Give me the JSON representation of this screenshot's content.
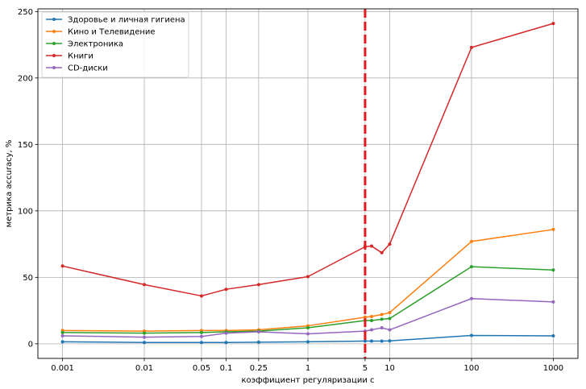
{
  "chart_data": {
    "type": "line",
    "xscale": "log",
    "xlabel": "коэффициент регуляризации c",
    "ylabel": "метрика accuracy, %",
    "xlim": [
      0.0005,
      2000
    ],
    "ylim": [
      -11,
      252
    ],
    "xticks": [
      0.001,
      0.01,
      0.05,
      0.1,
      0.25,
      1,
      5,
      10,
      100,
      1000
    ],
    "xtick_labels": [
      "0.001",
      "0.01",
      "0.05",
      "0.1",
      "0.25",
      "1",
      "5",
      "10",
      "100",
      "1000"
    ],
    "yticks": [
      0,
      50,
      100,
      150,
      200,
      250
    ],
    "ytick_labels": [
      "0",
      "50",
      "100",
      "150",
      "200",
      "250"
    ],
    "grid": true,
    "legend_position": "top-left",
    "vline": {
      "x": 5,
      "color": "#e41a1c",
      "style": "dashed"
    },
    "x": [
      0.001,
      0.01,
      0.05,
      0.1,
      0.25,
      1,
      5,
      6,
      8,
      10,
      100,
      1000
    ],
    "series": [
      {
        "name": "Здоровье и личная гигиена",
        "color": "#1f77b4",
        "values": [
          1.5,
          1.0,
          1.0,
          1.0,
          1.2,
          1.5,
          2.0,
          2.0,
          2.0,
          2.2,
          6.3,
          6.0
        ]
      },
      {
        "name": "Кино и Телевидение",
        "color": "#ff7f0e",
        "values": [
          10.0,
          9.5,
          10.0,
          10.0,
          10.5,
          13.5,
          20.0,
          20.5,
          22.0,
          23.5,
          77.0,
          86.0
        ]
      },
      {
        "name": "Электроника",
        "color": "#2ca02c",
        "values": [
          8.5,
          8.0,
          8.5,
          9.0,
          9.5,
          12.0,
          17.5,
          17.5,
          18.5,
          19.0,
          58.0,
          55.5
        ]
      },
      {
        "name": "Книги",
        "color": "#d62728",
        "values": [
          58.5,
          44.5,
          36.0,
          41.0,
          44.5,
          50.5,
          73.0,
          73.5,
          68.5,
          75.0,
          223.0,
          241.0
        ]
      },
      {
        "name": "CD-диски",
        "color": "#9467bd",
        "values": [
          6.0,
          5.0,
          5.5,
          8.0,
          9.0,
          7.5,
          9.5,
          10.5,
          12.0,
          10.5,
          34.0,
          31.5
        ]
      }
    ]
  }
}
